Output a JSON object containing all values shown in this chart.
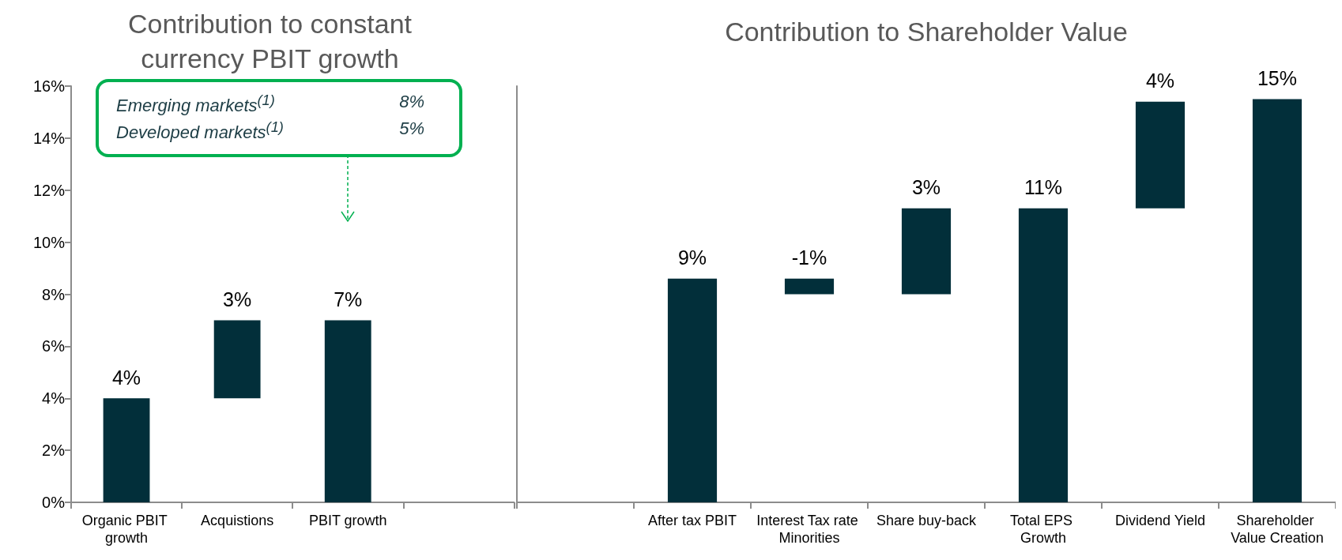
{
  "chart_data": [
    {
      "type": "bar",
      "title": "Contribution to constant currency PBIT growth",
      "categories": [
        "Organic PBIT growth",
        "Acquistions",
        "PBIT growth",
        null
      ],
      "values": [
        4,
        3,
        7,
        null
      ],
      "base": [
        0,
        4,
        0,
        null
      ],
      "value_labels": [
        "4%",
        "3%",
        "7%",
        null
      ],
      "color": "#022f3a",
      "ylim": [
        0,
        16
      ],
      "yticks": [
        {
          "value": 0,
          "label": "0%"
        },
        {
          "value": 2,
          "label": "2%"
        },
        {
          "value": 4,
          "label": "4%"
        },
        {
          "value": 6,
          "label": "6%"
        },
        {
          "value": 8,
          "label": "8%"
        },
        {
          "value": 10,
          "label": "10%"
        },
        {
          "value": 12,
          "label": "12%"
        },
        {
          "value": 14,
          "label": "14%"
        },
        {
          "value": 16,
          "label": "16%"
        }
      ],
      "annotations": [
        "Emerging markets$^{(1)}$",
        "8%",
        "Developed markets$^{(1)}$",
        "5%"
      ]
    },
    {
      "type": "bar",
      "title": "Contribution to Shareholder Value",
      "categories": [
        null,
        "After tax PBIT",
        "Interest Tax rate Minorities",
        "Share buy-back",
        "Total EPS Growth",
        "Dividend Yield",
        "Shareholder Value Creation"
      ],
      "values": [
        null,
        8.6,
        -0.6,
        3.3,
        11.3,
        4.1,
        15.5
      ],
      "base": [
        null,
        0,
        8.6,
        8,
        0,
        11.3,
        0
      ],
      "value_labels": [
        null,
        "9%",
        "-1%",
        "3%",
        "11%",
        "4%",
        "15%"
      ],
      "color": "#022f3a",
      "ylim": [
        0,
        16
      ],
      "tick_labels": "x"
    }
  ]
}
